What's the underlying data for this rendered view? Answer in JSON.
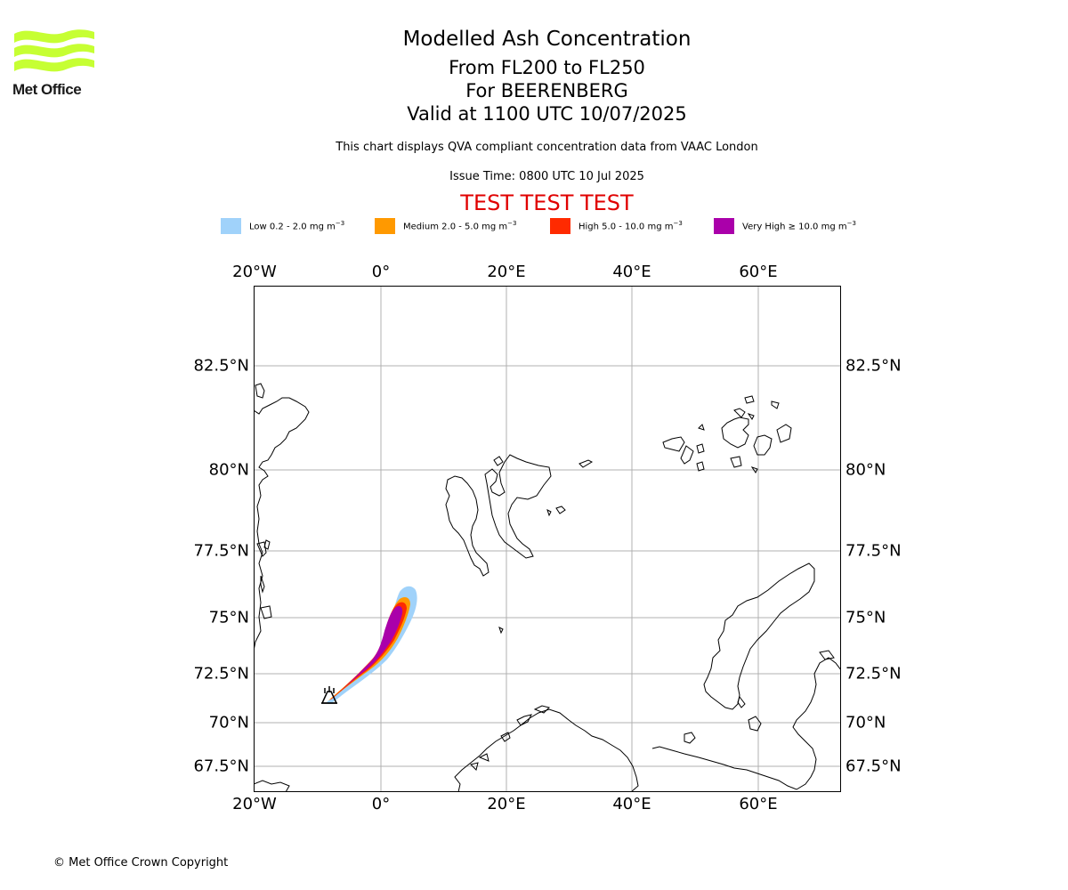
{
  "header": {
    "logo_text": "Met Office",
    "title": "Modelled Ash Concentration",
    "levels": "From FL200 to FL250",
    "volcano": "For BEERENBERG",
    "valid_time": "Valid at 1100 UTC 10/07/2025",
    "description": "This chart displays QVA compliant concentration data from VAAC London",
    "issue_time": "Issue Time: 0800 UTC 10 Jul 2025",
    "test_banner": "TEST TEST TEST",
    "test_banner_color": "#e00000"
  },
  "legend": [
    {
      "label": "Low 0.2 - 2.0 mg m",
      "unit_exp": "−3",
      "color": "#a0d2fa"
    },
    {
      "label": "Medium 2.0 - 5.0 mg m",
      "unit_exp": "−3",
      "color": "#ff9900"
    },
    {
      "label": "High 5.0 - 10.0 mg m",
      "unit_exp": "−3",
      "color": "#ff2a00"
    },
    {
      "label": "Very High  ≥  10.0 mg m",
      "unit_exp": "−3",
      "color": "#aa00aa"
    }
  ],
  "map": {
    "lon_ticks": [
      "20°W",
      "0°",
      "20°E",
      "40°E",
      "60°E"
    ],
    "lat_ticks": [
      "82.5°N",
      "80°N",
      "77.5°N",
      "75°N",
      "72.5°N",
      "70°N",
      "67.5°N"
    ],
    "volcano_marker_icon": "volcano-icon",
    "gridline_color": "#b0b0b0"
  },
  "footer": {
    "copyright": "© Met Office Crown Copyright"
  }
}
